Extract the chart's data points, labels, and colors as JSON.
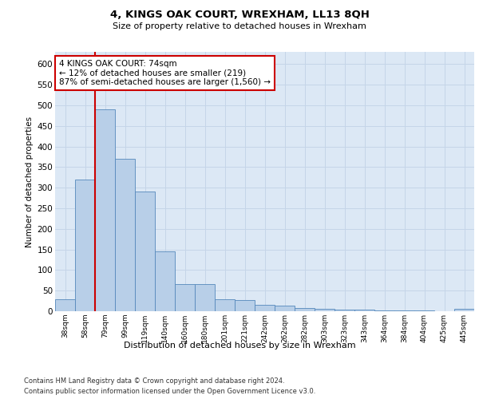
{
  "title": "4, KINGS OAK COURT, WREXHAM, LL13 8QH",
  "subtitle": "Size of property relative to detached houses in Wrexham",
  "xlabel": "Distribution of detached houses by size in Wrexham",
  "ylabel": "Number of detached properties",
  "categories": [
    "38sqm",
    "58sqm",
    "79sqm",
    "99sqm",
    "119sqm",
    "140sqm",
    "160sqm",
    "180sqm",
    "201sqm",
    "221sqm",
    "242sqm",
    "262sqm",
    "282sqm",
    "303sqm",
    "323sqm",
    "343sqm",
    "364sqm",
    "384sqm",
    "404sqm",
    "425sqm",
    "445sqm"
  ],
  "values": [
    30,
    320,
    490,
    370,
    290,
    145,
    65,
    65,
    30,
    28,
    15,
    13,
    8,
    5,
    4,
    3,
    2,
    1,
    1,
    0,
    5
  ],
  "bar_color": "#b8cfe8",
  "bar_edge_color": "#5588bb",
  "vline_x": 1.5,
  "vline_color": "#cc0000",
  "annotation_text": "4 KINGS OAK COURT: 74sqm\n← 12% of detached houses are smaller (219)\n87% of semi-detached houses are larger (1,560) →",
  "annotation_box_color": "#cc0000",
  "annotation_bg": "#ffffff",
  "ylim": [
    0,
    630
  ],
  "yticks": [
    0,
    50,
    100,
    150,
    200,
    250,
    300,
    350,
    400,
    450,
    500,
    550,
    600
  ],
  "footer_line1": "Contains HM Land Registry data © Crown copyright and database right 2024.",
  "footer_line2": "Contains public sector information licensed under the Open Government Licence v3.0.",
  "bg_color": "#dce8f5",
  "fig_bg_color": "#ffffff",
  "grid_color": "#c5d5e8"
}
